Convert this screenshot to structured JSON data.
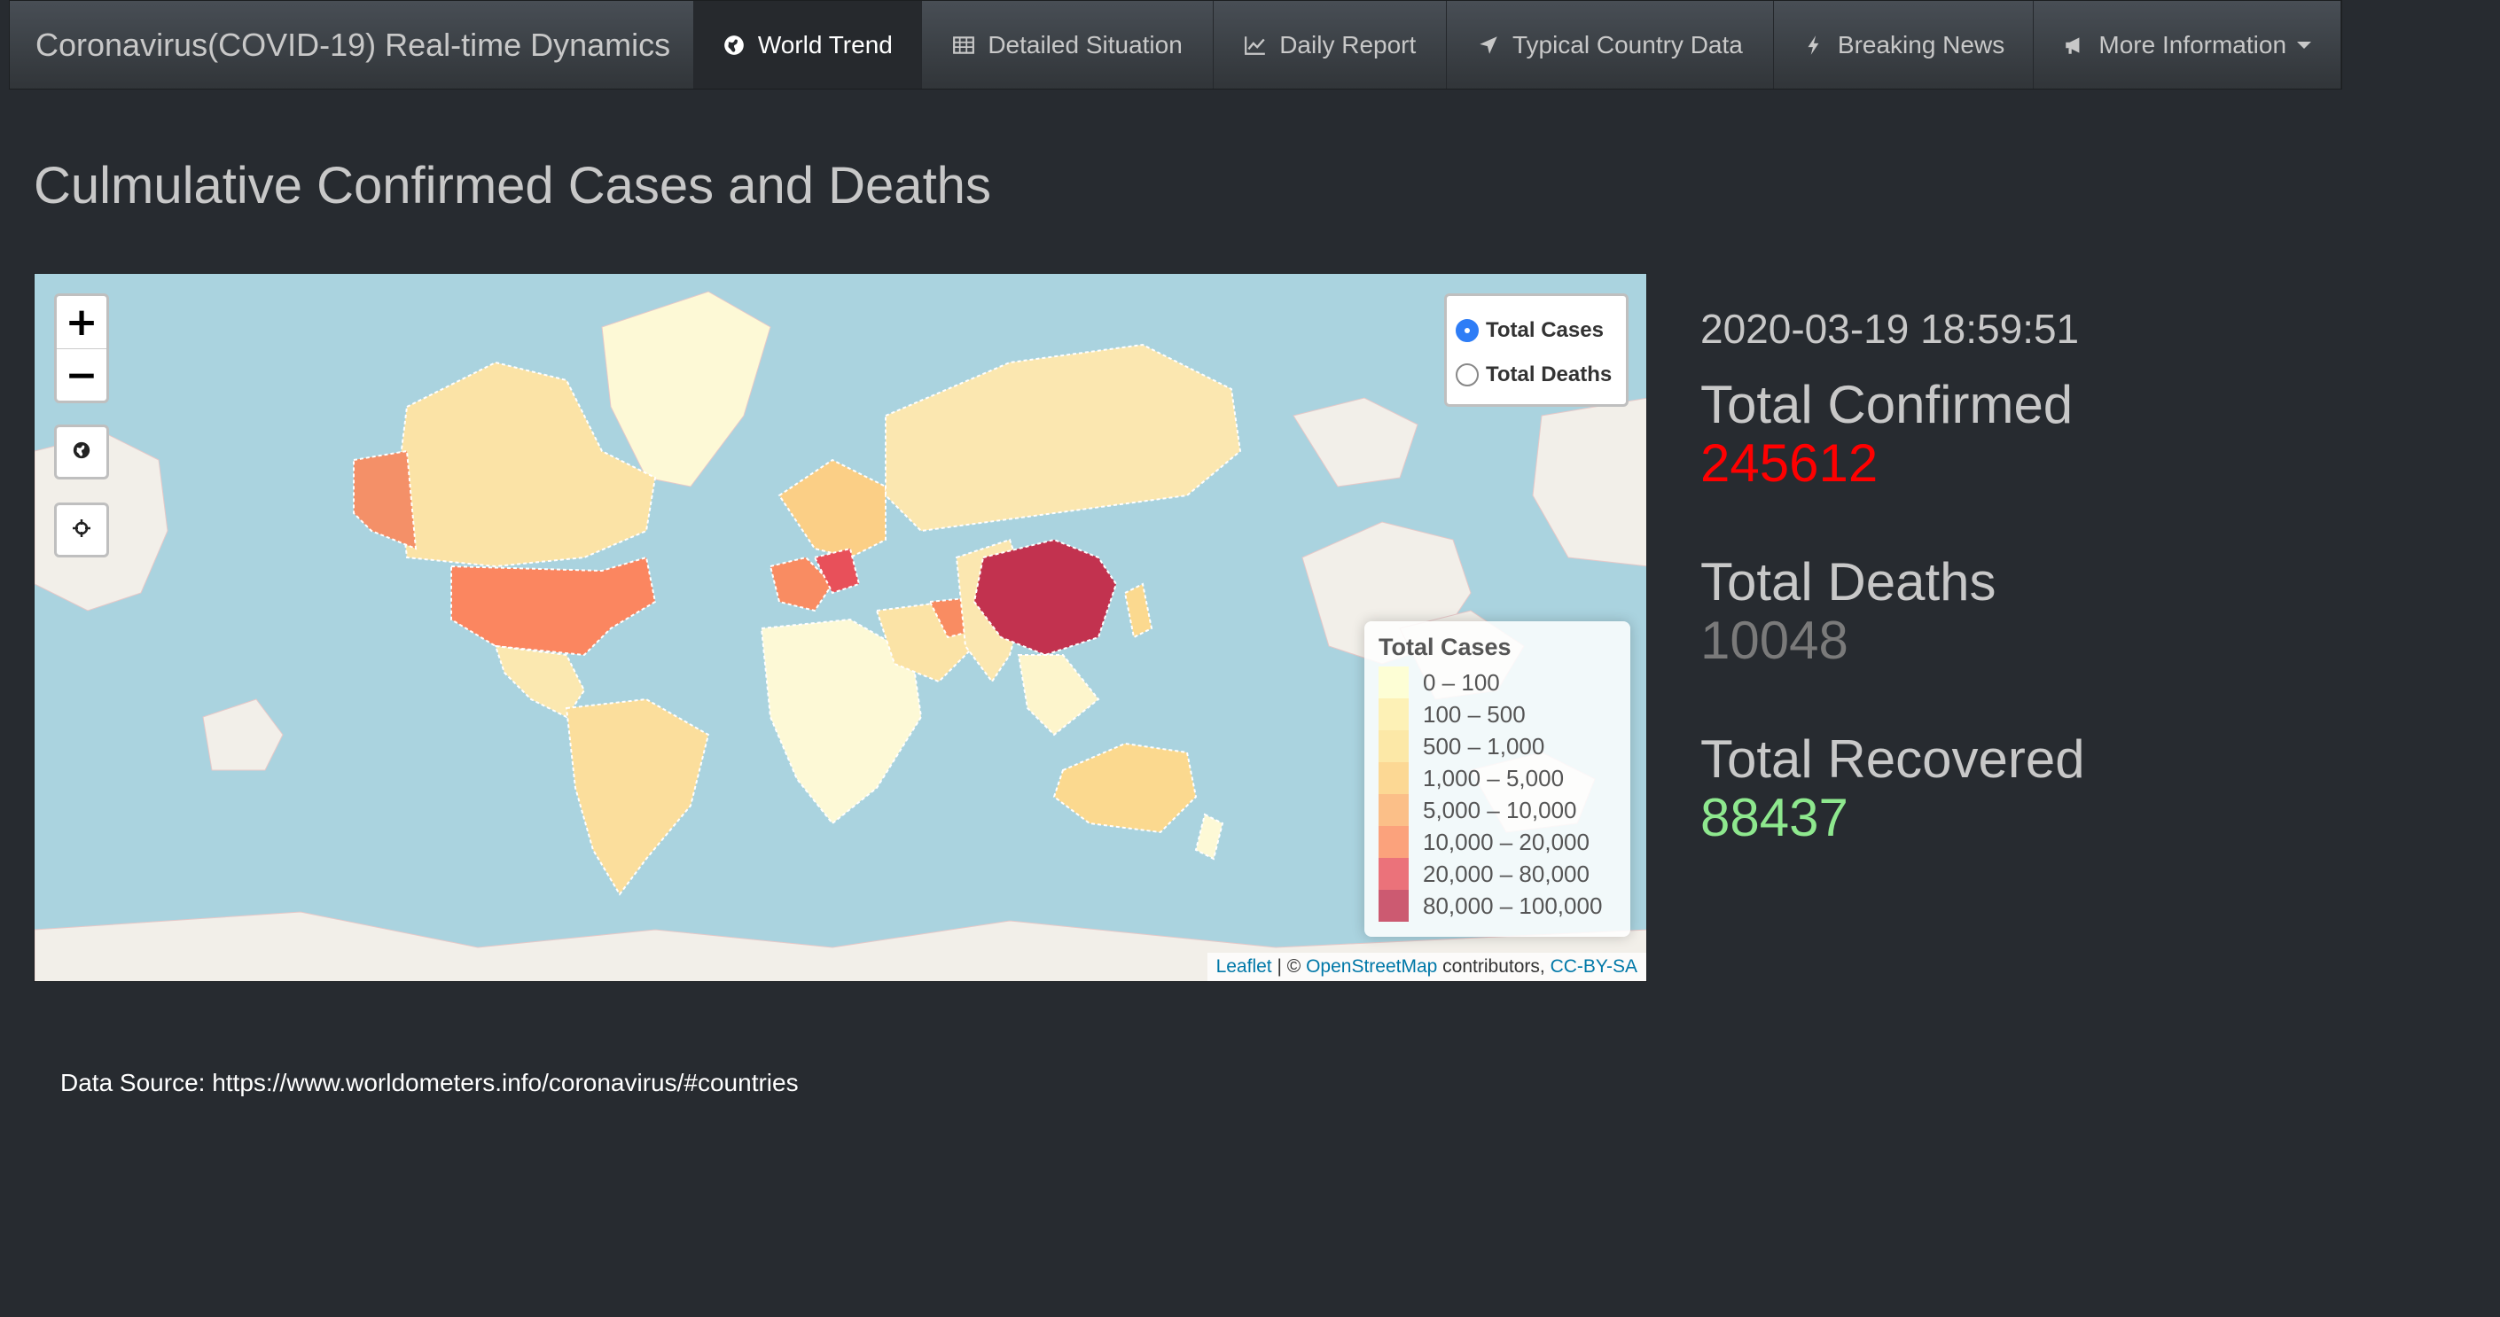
{
  "navbar": {
    "brand": "Coronavirus(COVID-19) Real-time Dynamics",
    "items": [
      {
        "label": "World Trend",
        "icon": "globe-icon",
        "active": true
      },
      {
        "label": "Detailed Situation",
        "icon": "table-icon",
        "active": false
      },
      {
        "label": "Daily Report",
        "icon": "line-chart-icon",
        "active": false
      },
      {
        "label": "Typical Country Data",
        "icon": "location-arrow-icon",
        "active": false
      },
      {
        "label": "Breaking News",
        "icon": "bolt-icon",
        "active": false
      },
      {
        "label": "More Information",
        "icon": "bullhorn-icon",
        "active": false,
        "dropdown": true
      }
    ]
  },
  "page": {
    "title": "Culmulative Confirmed Cases and Deaths"
  },
  "map": {
    "zoom_in": "+",
    "zoom_out": "−",
    "layers": [
      {
        "label": "Total Cases",
        "selected": true
      },
      {
        "label": "Total Deaths",
        "selected": false
      }
    ],
    "legend": {
      "title": "Total Cases",
      "bins": [
        {
          "label": "0 – 100",
          "color": "#ffffcc"
        },
        {
          "label": "100 – 500",
          "color": "#ffefa5"
        },
        {
          "label": "500 – 1,000",
          "color": "#fee392"
        },
        {
          "label": "1,000 – 5,000",
          "color": "#fed07a"
        },
        {
          "label": "5,000 – 10,000",
          "color": "#fdb06b"
        },
        {
          "label": "10,000 – 20,000",
          "color": "#fc8c5c"
        },
        {
          "label": "20,000 – 80,000",
          "color": "#e8505a"
        },
        {
          "label": "80,000 – 100,000",
          "color": "#c2324f"
        }
      ]
    },
    "attribution": {
      "leaflet": "Leaflet",
      "separator": " | © ",
      "osm": "OpenStreetMap",
      "contributors": " contributors, ",
      "license": "CC-BY-SA"
    },
    "colors": {
      "water": "#aad3df",
      "land": "#f2efe9"
    }
  },
  "stats": {
    "timestamp": "2020-03-19 18:59:51",
    "confirmed_label": "Total Confirmed",
    "confirmed_value": "245612",
    "confirmed_color": "#ff0000",
    "deaths_label": "Total Deaths",
    "deaths_value": "10048",
    "deaths_color": "#7a7a7a",
    "recovered_label": "Total Recovered",
    "recovered_value": "88437",
    "recovered_color": "#8ee88e"
  },
  "footer": {
    "source": "Data Source: https://www.worldometers.info/coronavirus/#countries"
  }
}
